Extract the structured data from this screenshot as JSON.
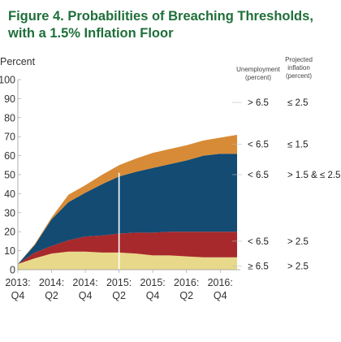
{
  "title_line1": "Figure 4. Probabilities of Breaching Thresholds,",
  "title_line2": "with a 1.5% Inflation Floor",
  "chart_data": {
    "type": "area",
    "ylabel": "Percent",
    "ylim": [
      0,
      100
    ],
    "yticks": [
      0,
      10,
      20,
      30,
      40,
      50,
      60,
      70,
      80,
      90,
      100
    ],
    "x_labels": [
      {
        "line1": "2013:",
        "line2": "Q4"
      },
      {
        "line1": "2014:",
        "line2": "Q2"
      },
      {
        "line1": "2014:",
        "line2": "Q4"
      },
      {
        "line1": "2015:",
        "line2": "Q2"
      },
      {
        "line1": "2015:",
        "line2": "Q4"
      },
      {
        "line1": "2016:",
        "line2": "Q2"
      },
      {
        "line1": "2016:",
        "line2": "Q4"
      }
    ],
    "x": [
      0,
      0.5,
      1,
      1.5,
      2,
      2.5,
      3,
      3.5,
      4,
      4.5,
      5,
      5.5,
      6,
      6.5
    ],
    "vertical_marker_x": 3.0,
    "stacked_series": [
      {
        "unemployment": "≥ 6.5",
        "inflation": "> 2.5",
        "color": "#e8d98a",
        "values": [
          3,
          6,
          8.5,
          9.5,
          9.5,
          9,
          9,
          8.5,
          7.5,
          7.5,
          7,
          6.5,
          6.5,
          6.5
        ]
      },
      {
        "unemployment": "< 6.5",
        "inflation": "> 2.5",
        "color": "#a8292b",
        "values": [
          0,
          3,
          4,
          6,
          8,
          9,
          10,
          11,
          12,
          12.5,
          13,
          13.5,
          13.5,
          13.5
        ]
      },
      {
        "unemployment": "< 6.5",
        "inflation": "> 1.5 & ≤ 2.5",
        "color": "#134b73",
        "values": [
          0,
          4,
          14,
          20,
          23,
          27,
          30,
          32,
          34,
          35.5,
          37.5,
          40,
          41,
          41
        ]
      },
      {
        "unemployment": "< 6.5",
        "inflation": "≤ 1.5",
        "color": "#d88b36",
        "values": [
          0,
          0.5,
          1,
          4,
          4,
          5,
          6,
          7,
          8,
          8,
          8,
          8,
          8.5,
          10
        ]
      },
      {
        "unemployment": "> 6.5",
        "inflation": "≤ 2.5",
        "color": "#ffffff",
        "values": [
          97,
          86.5,
          72.5,
          60.5,
          55.5,
          50,
          45,
          41.5,
          38.5,
          36.5,
          34.5,
          32,
          30.5,
          29
        ]
      }
    ],
    "legend_headers": {
      "unemployment": "Unemployment\n(percent)",
      "inflation": "Projected\ninflation\n(percent)"
    },
    "right_labels": [
      {
        "unemployment": "> 6.5",
        "inflation": "≤ 2.5",
        "y": 88
      },
      {
        "unemployment": "< 6.5",
        "inflation": "≤ 1.5",
        "y": 66
      },
      {
        "unemployment": "< 6.5",
        "inflation": "> 1.5 & ≤ 2.5",
        "y": 50
      },
      {
        "unemployment": "< 6.5",
        "inflation": "> 2.5",
        "y": 15
      },
      {
        "unemployment": "≥ 6.5",
        "inflation": "> 2.5",
        "y": 2
      }
    ]
  }
}
